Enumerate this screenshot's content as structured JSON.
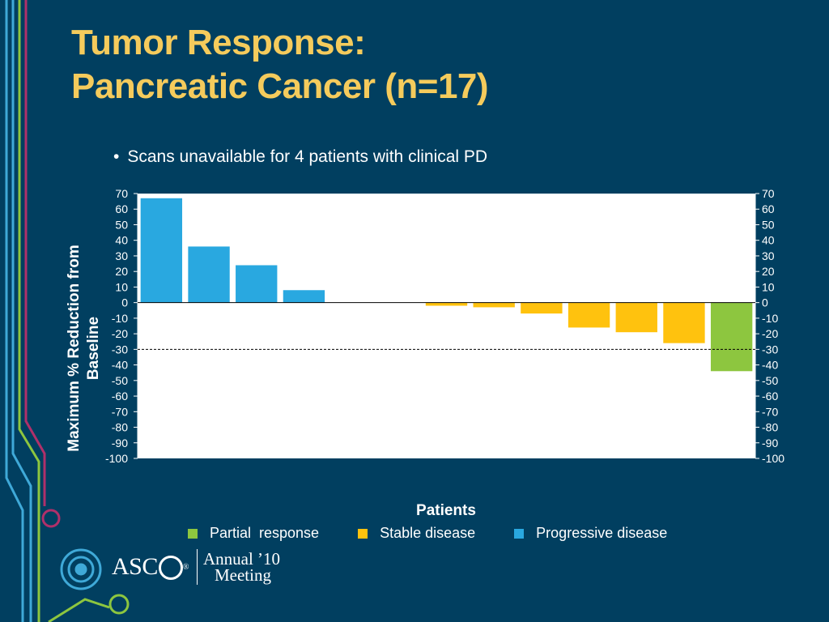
{
  "slide": {
    "title_line1": "Tumor Response:",
    "title_line2": "Pancreatic Cancer (n=17)",
    "bullet": "Scans unavailable for 4 patients with clinical PD",
    "bullet_marker": "•",
    "logo": {
      "asco": "ASC",
      "registered": "®",
      "annual": "Annual ’10",
      "meeting": "Meeting"
    }
  },
  "colors": {
    "background": "#013f60",
    "title": "#f5cb5c",
    "progressive": "#29a8e0",
    "stable": "#ffc20e",
    "partial": "#8dc63f",
    "decoration_blue": "#3fa9d8",
    "decoration_green": "#8dc63f",
    "decoration_magenta": "#b0306a"
  },
  "chart_data": {
    "type": "bar",
    "xlabel": "Patients",
    "ylabel": "Maximum % Reduction from Baseline",
    "ylim": [
      -100,
      70
    ],
    "yticks": [
      70,
      60,
      50,
      40,
      30,
      20,
      10,
      0,
      -10,
      -20,
      -30,
      -40,
      -50,
      -60,
      -70,
      -80,
      -90,
      -100
    ],
    "secondary_axis": true,
    "reference_line": -30,
    "grid": false,
    "legend_placement": "bottom",
    "legend": [
      {
        "name": "Partial  response",
        "color": "#8dc63f"
      },
      {
        "name": "Stable disease",
        "color": "#ffc20e"
      },
      {
        "name": "Progressive disease",
        "color": "#29a8e0"
      }
    ],
    "bars": [
      {
        "value": 67,
        "category": "Progressive disease"
      },
      {
        "value": 36,
        "category": "Progressive disease"
      },
      {
        "value": 24,
        "category": "Progressive disease"
      },
      {
        "value": 8,
        "category": "Progressive disease"
      },
      {
        "value": 0,
        "category": "Progressive disease"
      },
      {
        "value": 0,
        "category": "Progressive disease"
      },
      {
        "value": -2,
        "category": "Stable disease"
      },
      {
        "value": -3,
        "category": "Stable disease"
      },
      {
        "value": -7,
        "category": "Stable disease"
      },
      {
        "value": -16,
        "category": "Stable disease"
      },
      {
        "value": -19,
        "category": "Stable disease"
      },
      {
        "value": -26,
        "category": "Stable disease"
      },
      {
        "value": -44,
        "category": "Partial  response"
      }
    ]
  }
}
